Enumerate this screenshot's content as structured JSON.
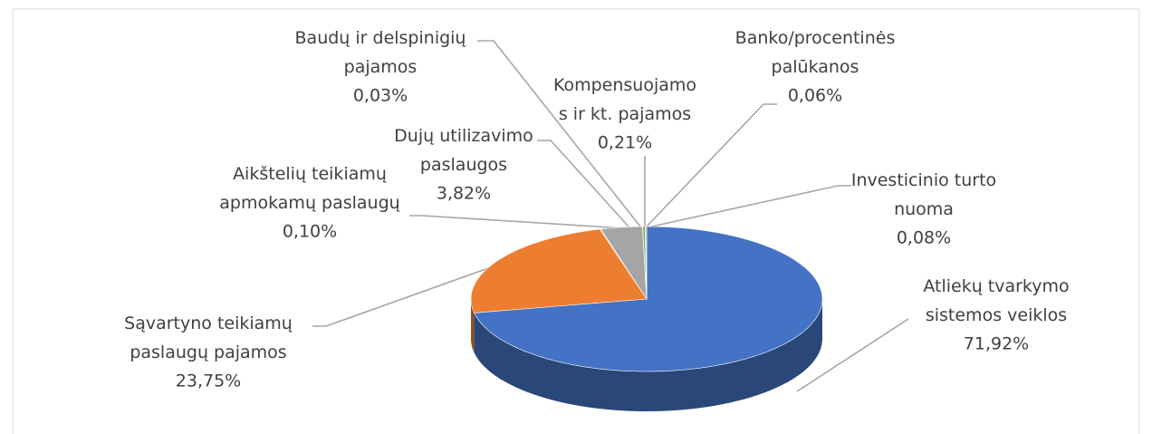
{
  "chart_data": {
    "type": "pie3d",
    "categories": [
      "Atliekų tvarkymo\nsistemos veiklos",
      "Sąvartyno teikiamų\npaslaugų pajamos",
      "Aikštelių teikiamų\napmokamų paslaugų",
      "Dujų utilizavimo\npaslaugos",
      "Baudų ir delspinigių\npajamos",
      "Kompensuojamo\ns ir kt. pajamos",
      "Banko/procentinės\npalūkanos",
      "Investicinio turto\nnuoma"
    ],
    "values": [
      71.92,
      23.75,
      0.1,
      3.82,
      0.03,
      0.21,
      0.06,
      0.08
    ],
    "value_labels": [
      "71,92%",
      "23,75%",
      "0,10%",
      "3,82%",
      "0,03%",
      "0,21%",
      "0,06%",
      "0,08%"
    ],
    "colors": [
      "#4472c4",
      "#ed7d31",
      "#ffc000",
      "#a5a5a5",
      "#5b9bd5",
      "#70ad47",
      "#264478",
      "#9e480e"
    ]
  }
}
